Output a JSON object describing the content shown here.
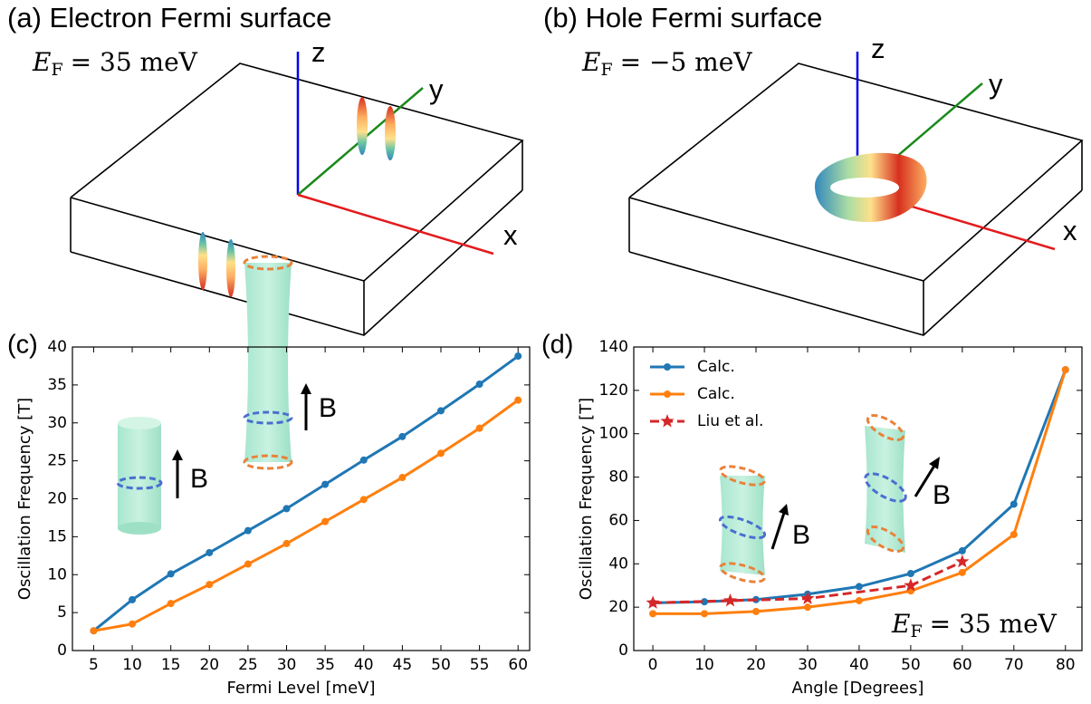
{
  "chart_data": [
    {
      "type": "surface3d",
      "panel_label": "(a)",
      "title": "Electron Fermi surface",
      "annotation": {
        "symbol": "E",
        "subscript": "F",
        "text": "= 35 meV"
      },
      "axis_labels": [
        "x",
        "y",
        "z"
      ]
    },
    {
      "type": "surface3d",
      "panel_label": "(b)",
      "title": "Hole Fermi surface",
      "annotation": {
        "symbol": "E",
        "subscript": "F",
        "text": "= −5 meV"
      },
      "axis_labels": [
        "x",
        "y",
        "z"
      ]
    },
    {
      "type": "line",
      "panel_label": "(c)",
      "x_label": "Fermi Level [meV]",
      "y_label": "Oscillation Frequency [T]",
      "x": [
        5,
        10,
        15,
        20,
        25,
        30,
        35,
        40,
        45,
        50,
        55,
        60
      ],
      "xlim": [
        2.25,
        61.5
      ],
      "xticks": [
        5,
        10,
        15,
        20,
        25,
        30,
        35,
        40,
        45,
        50,
        55,
        60
      ],
      "ylim": [
        0,
        40
      ],
      "yticks": [
        0,
        5,
        10,
        15,
        20,
        25,
        30,
        35,
        40
      ],
      "insets": [
        "B",
        "B"
      ],
      "series": [
        {
          "color": "#1f77b4",
          "marker": "circle",
          "values": [
            2.6,
            6.7,
            10.1,
            12.9,
            15.8,
            18.7,
            21.9,
            25.1,
            28.2,
            31.6,
            35.1,
            38.8
          ]
        },
        {
          "color": "#ff7f0e",
          "marker": "circle",
          "values": [
            2.6,
            3.5,
            6.2,
            8.7,
            11.4,
            14.1,
            17.0,
            19.9,
            22.8,
            26.0,
            29.3,
            33.0
          ]
        }
      ]
    },
    {
      "type": "line",
      "panel_label": "(d)",
      "x_label": "Angle [Degrees]",
      "y_label": "Oscillation Frequency [T]",
      "xlim": [
        -3.7,
        83.2
      ],
      "xticks": [
        0,
        10,
        20,
        30,
        40,
        50,
        60,
        70,
        80
      ],
      "ylim": [
        0,
        140
      ],
      "yticks": [
        0,
        20,
        40,
        60,
        80,
        100,
        120,
        140
      ],
      "legend": "upper left",
      "insets": [
        "B",
        "B"
      ],
      "annotation": {
        "symbol": "E",
        "subscript": "F",
        "text": "= 35 meV"
      },
      "series": [
        {
          "name": "Calc.",
          "color": "#1f77b4",
          "marker": "circle",
          "x": [
            0,
            10,
            20,
            30,
            40,
            50,
            60,
            70,
            80
          ],
          "values": [
            22,
            22.5,
            23.5,
            26,
            29.5,
            35.5,
            46,
            67.5,
            129.5
          ]
        },
        {
          "name": "Calc.",
          "color": "#ff7f0e",
          "marker": "circle",
          "x": [
            0,
            10,
            20,
            30,
            40,
            50,
            60,
            70,
            80
          ],
          "values": [
            17,
            17,
            18,
            20,
            23,
            27.5,
            36,
            53.5,
            129.5
          ]
        },
        {
          "name": "Liu et al.",
          "color": "#d62728",
          "marker": "star",
          "dashed": true,
          "x": [
            0,
            15,
            30,
            50,
            60
          ],
          "values": [
            22,
            23,
            24,
            30,
            41
          ]
        }
      ]
    }
  ]
}
